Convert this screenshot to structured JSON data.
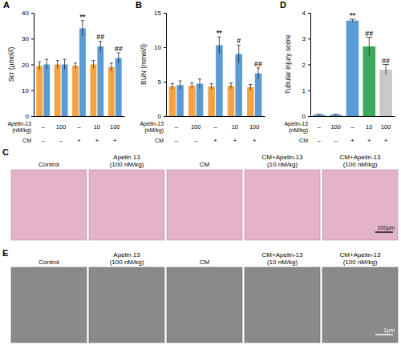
{
  "chart_data": [
    {
      "panel": "A",
      "type": "bar",
      "ylabel": "Scr (μmol/l)",
      "categories": [
        null,
        null,
        null,
        null,
        null
      ],
      "ylim": [
        0,
        40
      ],
      "yticks": [
        0,
        10,
        20,
        30,
        40
      ],
      "series": [
        {
          "color": "#f4a340",
          "values": [
            19.5,
            20,
            19.5,
            20,
            19
          ],
          "errors": [
            1.5,
            1.5,
            1,
            1.5,
            1.5
          ]
        },
        {
          "color": "#5b9bd5",
          "values": [
            20,
            20,
            34,
            27,
            22.5
          ],
          "errors": [
            2,
            2,
            3,
            2,
            2
          ],
          "annotations": [
            null,
            null,
            "**",
            "##",
            "##"
          ]
        }
      ],
      "conditions": [
        {
          "label": [
            "Apelin-13",
            "(nM/kg)"
          ],
          "values": [
            "–",
            "100",
            "–",
            "10",
            "100"
          ]
        },
        {
          "label": [
            "CM"
          ],
          "values": [
            "–",
            "–",
            "+",
            "+",
            "+"
          ]
        }
      ]
    },
    {
      "panel": "B",
      "type": "bar",
      "ylabel": "BUN (mmol/l)",
      "categories": [
        null,
        null,
        null,
        null,
        null
      ],
      "ylim": [
        0,
        15
      ],
      "yticks": [
        0,
        5,
        10,
        15
      ],
      "series": [
        {
          "color": "#f4a340",
          "values": [
            4.3,
            4.4,
            4.3,
            4.4,
            4.2
          ],
          "errors": [
            0.4,
            0.4,
            0.4,
            0.4,
            0.4
          ]
        },
        {
          "color": "#5b9bd5",
          "values": [
            4.5,
            4.7,
            10.3,
            9,
            6.2
          ],
          "errors": [
            0.6,
            0.7,
            1.2,
            1.3,
            0.8
          ],
          "annotations": [
            null,
            null,
            "**",
            "#",
            "##"
          ]
        }
      ],
      "conditions": [
        {
          "label": [
            "Apelin-13",
            "(nM/kg)"
          ],
          "values": [
            "–",
            "100",
            "–",
            "10",
            "100"
          ]
        },
        {
          "label": [
            "CM"
          ],
          "values": [
            "–",
            "–",
            "+",
            "+",
            "+"
          ]
        }
      ]
    },
    {
      "panel": "D",
      "type": "bar",
      "ylabel": "Tubular injury score",
      "categories": [
        null,
        null,
        null,
        null,
        null
      ],
      "ylim": [
        0,
        4
      ],
      "yticks": [
        0,
        1,
        2,
        3,
        4
      ],
      "values": [
        0.05,
        0.05,
        3.7,
        2.7,
        1.8
      ],
      "errors": [
        0.02,
        0.02,
        0.05,
        0.35,
        0.2
      ],
      "colors": [
        "#5b9bd5",
        "#5b9bd5",
        "#5b9bd5",
        "#3aaa5a",
        "#c8c8c8"
      ],
      "annotations": [
        null,
        null,
        "**",
        "##",
        "##"
      ],
      "conditions": [
        {
          "label": [
            "Apelin-13",
            "(nM/kg)"
          ],
          "values": [
            "–",
            "100",
            "–",
            "10",
            "100"
          ]
        },
        {
          "label": [
            "CM"
          ],
          "values": [
            "–",
            "–",
            "+",
            "+",
            "+"
          ]
        }
      ]
    }
  ],
  "image_panels": [
    {
      "panel": "C",
      "labels": [
        [
          "Control"
        ],
        [
          "Apelin 13",
          "(100 nM/kg)"
        ],
        [
          "CM"
        ],
        [
          "CM+Apelin-13",
          "(10 nM/kg)"
        ],
        [
          "CM+Apelin-13",
          "(100 nM/kg)"
        ]
      ],
      "scale_bar": "100μm"
    },
    {
      "panel": "E",
      "labels": [
        [
          "Control"
        ],
        [
          "Apelin 13",
          "(100 nM/kg)"
        ],
        [
          "CM"
        ],
        [
          "CM+Apelin-13",
          "(10 nM/kg)"
        ],
        [
          "CM+Apelin-13",
          "(100 nM/kg)"
        ]
      ],
      "scale_bar": "1μm"
    }
  ]
}
